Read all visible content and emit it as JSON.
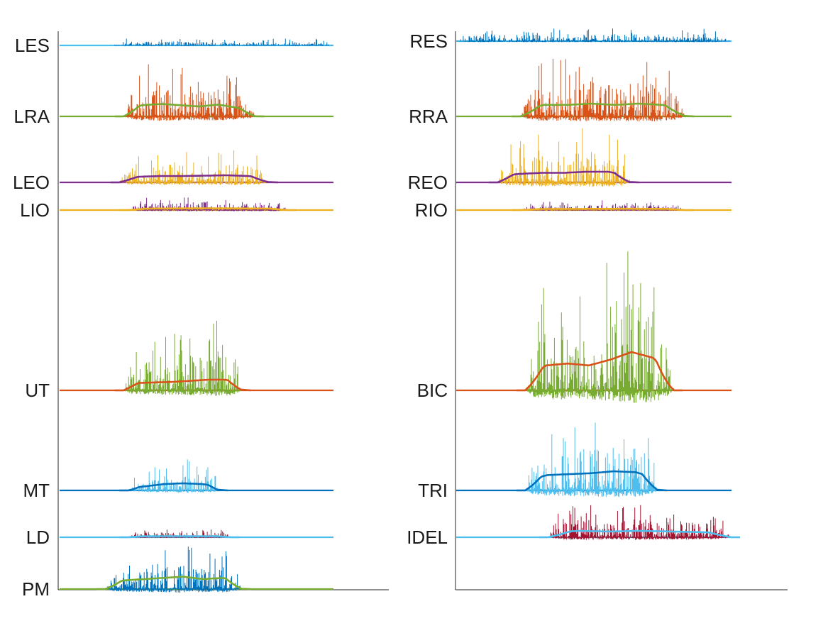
{
  "chart_data": [
    {
      "type": "line",
      "panel": "left",
      "title": "",
      "xlabel": "",
      "ylabel": "",
      "grid": false,
      "legend": "none",
      "x_range": [
        0,
        1.2
      ],
      "channels": [
        {
          "label": "LES",
          "burst_color": "#0072bd",
          "baseline_color": "#4dbeee",
          "envelope_color": "",
          "onset": 0.22,
          "offset": 1.2,
          "peak_amplitude": 0.35,
          "envelope_level": 0,
          "envelope_shape": [
            0.5,
            0.6,
            0.6,
            0.5,
            0.5,
            0.6,
            0.5
          ]
        },
        {
          "label": "LRA",
          "burst_color": "#d95319",
          "baseline_color": "#77ac30",
          "envelope_color": "#77ac30",
          "onset": 0.28,
          "offset": 0.86,
          "peak_amplitude": 1.6,
          "envelope_level": 0.35,
          "envelope_shape": [
            0.6,
            0.9,
            1.0,
            0.9,
            0.8,
            0.95,
            0.7,
            0.4
          ]
        },
        {
          "label": "LEO",
          "burst_color": "#edb120",
          "baseline_color": "#7e2f8e",
          "envelope_color": "#7e2f8e",
          "onset": 0.26,
          "offset": 0.92,
          "peak_amplitude": 1.0,
          "envelope_level": 0.2,
          "envelope_shape": [
            0.6,
            0.8,
            0.9,
            0.9,
            0.95,
            1.0,
            0.9,
            0.6
          ]
        },
        {
          "label": "LIO",
          "burst_color": "#7e2f8e",
          "baseline_color": "#edb120",
          "envelope_color": "#edb120",
          "onset": 0.3,
          "offset": 1.0,
          "peak_amplitude": 0.45,
          "envelope_level": 0.05,
          "envelope_shape": [
            0.8,
            0.9,
            1.0,
            0.9,
            0.8
          ]
        },
        {
          "label": "UT",
          "burst_color": "#77ac30",
          "baseline_color": "#d95319",
          "envelope_color": "#d95319",
          "onset": 0.28,
          "offset": 0.8,
          "peak_amplitude": 2.0,
          "envelope_level": 0.3,
          "envelope_shape": [
            0.6,
            0.7,
            0.75,
            0.8,
            0.9,
            1.0,
            1.0,
            0.7
          ]
        },
        {
          "label": "MT",
          "burst_color": "#4dbeee",
          "baseline_color": "#0072bd",
          "envelope_color": "#0072bd",
          "onset": 0.3,
          "offset": 0.7,
          "peak_amplitude": 0.9,
          "envelope_level": 0.2,
          "envelope_shape": [
            0.3,
            0.6,
            0.9,
            1.0,
            0.9,
            0.6
          ]
        },
        {
          "label": "LD",
          "burst_color": "#a2142f",
          "baseline_color": "#4dbeee",
          "envelope_color": "#4dbeee",
          "onset": 0.3,
          "offset": 0.75,
          "peak_amplitude": 0.25,
          "envelope_level": 0.03,
          "envelope_shape": [
            0.8,
            1.0,
            1.0,
            0.9
          ]
        },
        {
          "label": "PM",
          "burst_color": "#0072bd",
          "baseline_color": "#77ac30",
          "envelope_color": "#77ac30",
          "onset": 0.2,
          "offset": 0.8,
          "peak_amplitude": 1.3,
          "envelope_level": 0.35,
          "envelope_shape": [
            0.5,
            0.7,
            0.8,
            0.9,
            1.0,
            0.8,
            0.9,
            0.6
          ]
        }
      ]
    },
    {
      "type": "line",
      "panel": "right",
      "title": "",
      "xlabel": "",
      "ylabel": "",
      "grid": false,
      "legend": "none",
      "x_range": [
        0,
        1.2
      ],
      "channels": [
        {
          "label": "RES",
          "burst_color": "#0072bd",
          "baseline_color": "#4dbeee",
          "envelope_color": "",
          "onset": 0.0,
          "offset": 1.2,
          "peak_amplitude": 0.3,
          "envelope_level": 0,
          "envelope_shape": [
            1,
            1,
            1,
            1
          ]
        },
        {
          "label": "RRA",
          "burst_color": "#d95319",
          "baseline_color": "#77ac30",
          "envelope_color": "#77ac30",
          "onset": 0.28,
          "offset": 1.0,
          "peak_amplitude": 1.5,
          "envelope_level": 0.3,
          "envelope_shape": [
            0.6,
            0.9,
            0.9,
            1.0,
            0.9,
            1.0,
            0.9,
            0.6
          ]
        },
        {
          "label": "REO",
          "burst_color": "#edb120",
          "baseline_color": "#7e2f8e",
          "envelope_color": "#7e2f8e",
          "onset": 0.18,
          "offset": 0.76,
          "peak_amplitude": 1.3,
          "envelope_level": 0.25,
          "envelope_shape": [
            0.6,
            0.8,
            0.9,
            0.9,
            1.0,
            1.0,
            0.6
          ]
        },
        {
          "label": "RIO",
          "burst_color": "#7e2f8e",
          "baseline_color": "#edb120",
          "envelope_color": "#edb120",
          "onset": 0.28,
          "offset": 1.0,
          "peak_amplitude": 0.25,
          "envelope_level": 0.03,
          "envelope_shape": [
            0.8,
            0.9,
            1.0,
            0.9
          ]
        },
        {
          "label": "BIC",
          "burst_color": "#77ac30",
          "baseline_color": "#d95319",
          "envelope_color": "#d95319",
          "onset": 0.3,
          "offset": 0.95,
          "peak_amplitude": 4.0,
          "envelope_level": 0.9,
          "envelope_shape": [
            0.4,
            0.65,
            0.7,
            0.65,
            0.8,
            1.0,
            0.85,
            0.4
          ]
        },
        {
          "label": "TRI",
          "burst_color": "#4dbeee",
          "baseline_color": "#0072bd",
          "envelope_color": "#0072bd",
          "onset": 0.3,
          "offset": 0.88,
          "peak_amplitude": 2.0,
          "envelope_level": 0.45,
          "envelope_shape": [
            0.5,
            0.8,
            0.85,
            0.9,
            1.0,
            0.95,
            0.6
          ]
        },
        {
          "label": "IDEL",
          "burst_color": "#a2142f",
          "baseline_color": "#4dbeee",
          "envelope_color": "#4dbeee",
          "onset": 0.4,
          "offset": 1.2,
          "peak_amplitude": 0.8,
          "envelope_level": 0.15,
          "envelope_shape": [
            0.7,
            1.0,
            0.9,
            1.0,
            0.9,
            0.8,
            0.6
          ]
        }
      ]
    }
  ]
}
